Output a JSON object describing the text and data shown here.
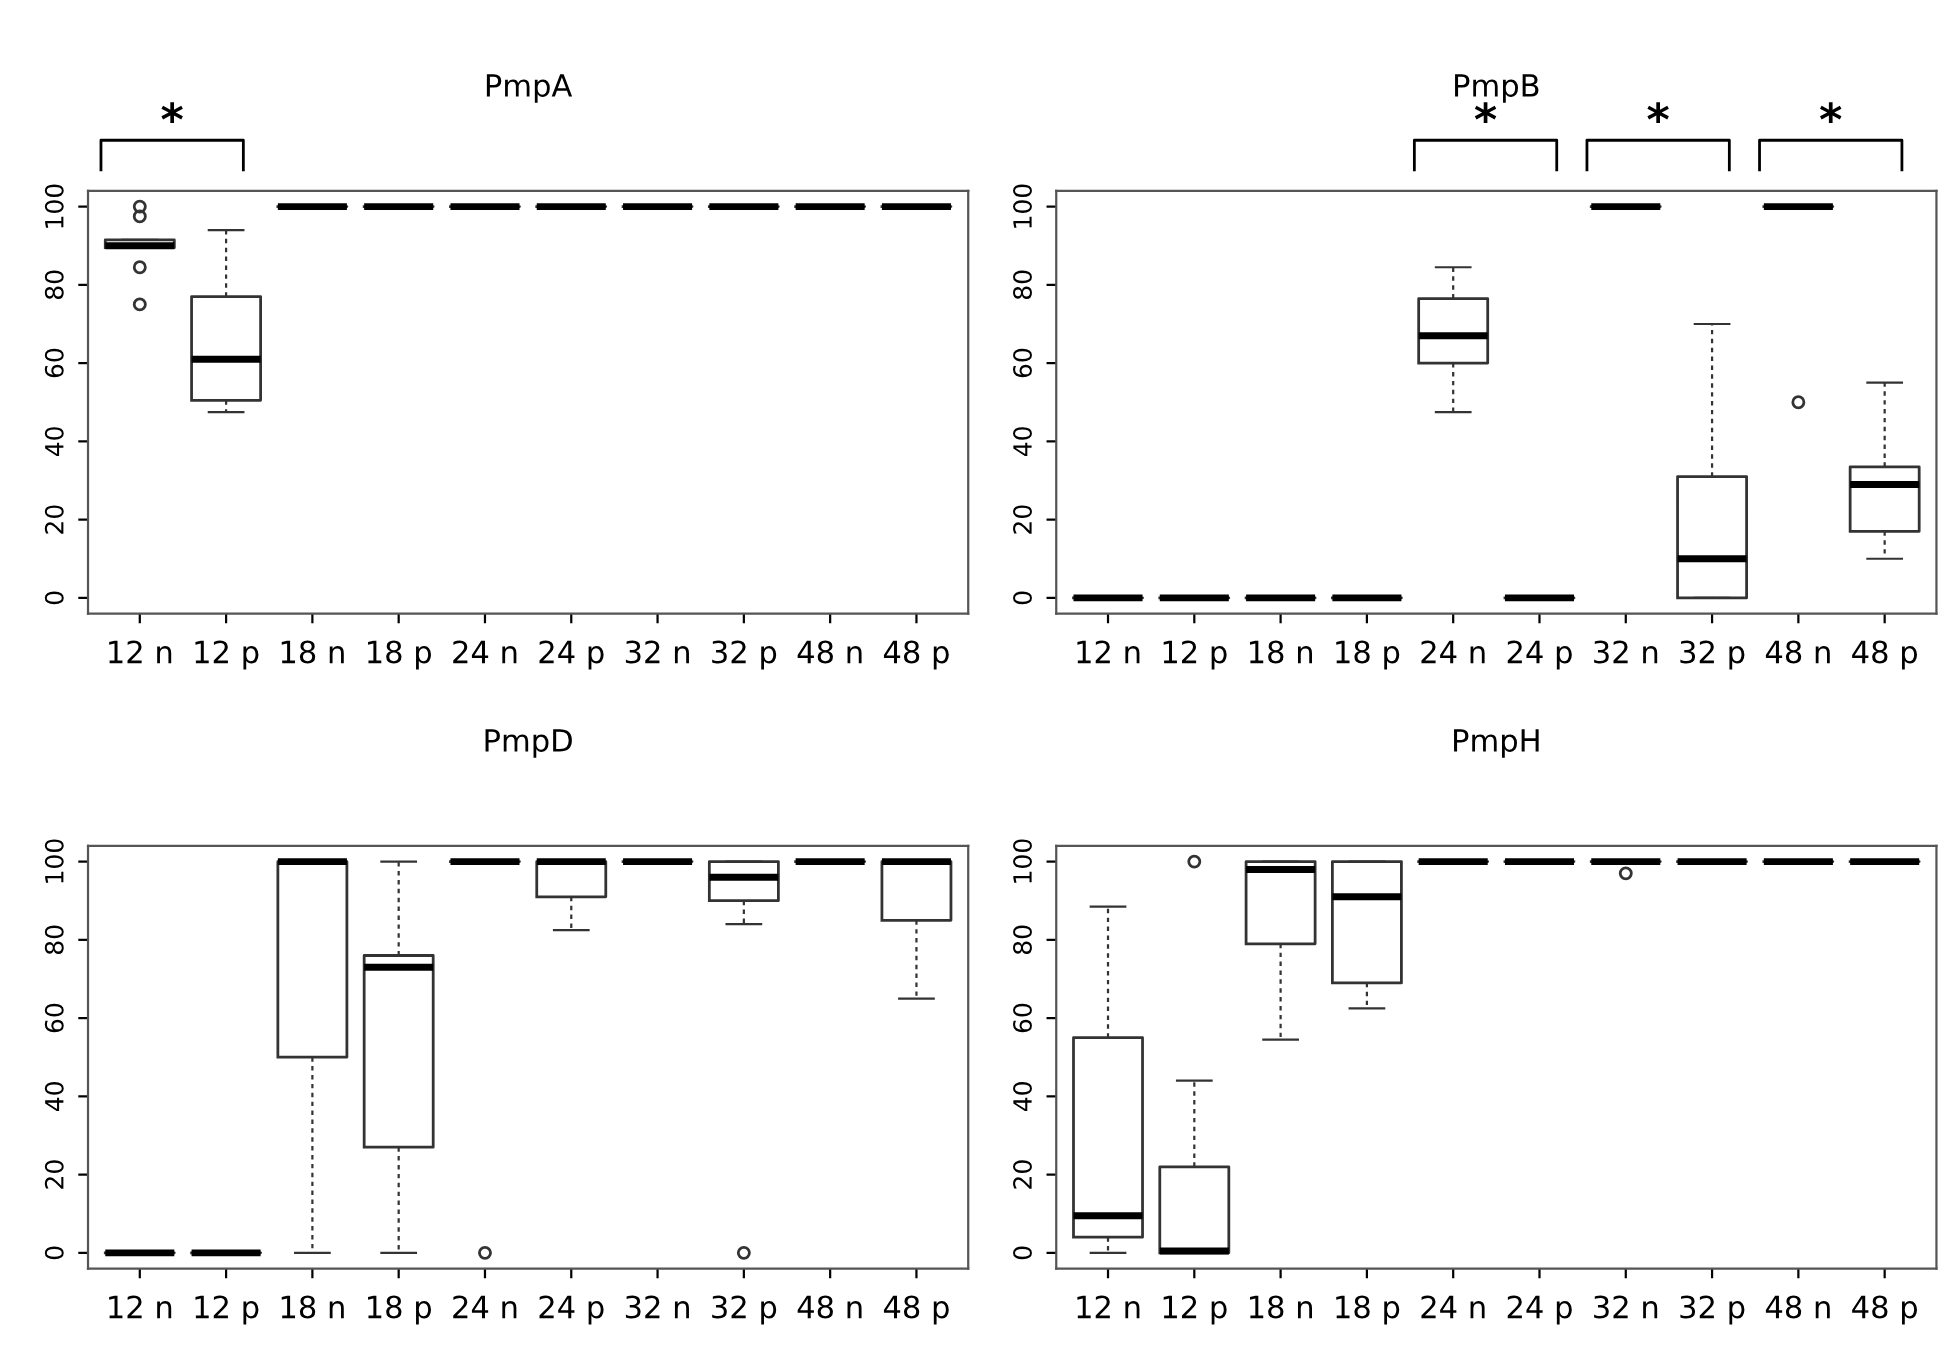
{
  "chart_data": [
    {
      "type": "box",
      "title": "PmpA",
      "categories": [
        "12 n",
        "12 p",
        "18 n",
        "18 p",
        "24 n",
        "24 p",
        "32 n",
        "32 p",
        "48 n",
        "48 p"
      ],
      "ylim": [
        -4,
        104
      ],
      "yticks": [
        0,
        20,
        40,
        60,
        80,
        100
      ],
      "annotations": [
        "*"
      ],
      "boxes": [
        {
          "low": 89.5,
          "q1": 89.5,
          "median": 90,
          "q3": 91.5,
          "high": 91.5,
          "outliers": [
            100,
            97.5,
            84.5,
            75
          ]
        },
        {
          "low": 47.5,
          "q1": 50.5,
          "median": 61,
          "q3": 77,
          "high": 94
        },
        {
          "low": 100,
          "q1": 100,
          "median": 100,
          "q3": 100,
          "high": 100
        },
        {
          "low": 100,
          "q1": 100,
          "median": 100,
          "q3": 100,
          "high": 100
        },
        {
          "low": 100,
          "q1": 100,
          "median": 100,
          "q3": 100,
          "high": 100
        },
        {
          "low": 100,
          "q1": 100,
          "median": 100,
          "q3": 100,
          "high": 100
        },
        {
          "low": 100,
          "q1": 100,
          "median": 100,
          "q3": 100,
          "high": 100
        },
        {
          "low": 100,
          "q1": 100,
          "median": 100,
          "q3": 100,
          "high": 100
        },
        {
          "low": 100,
          "q1": 100,
          "median": 100,
          "q3": 100,
          "high": 100
        },
        {
          "low": 100,
          "q1": 100,
          "median": 100,
          "q3": 100,
          "high": 100
        }
      ]
    },
    {
      "type": "box",
      "title": "PmpB",
      "categories": [
        "12 n",
        "12 p",
        "18 n",
        "18 p",
        "24 n",
        "24 p",
        "32 n",
        "32 p",
        "48 n",
        "48 p"
      ],
      "ylim": [
        -4,
        104
      ],
      "yticks": [
        0,
        20,
        40,
        60,
        80,
        100
      ],
      "annotations": [
        "*",
        "*",
        "*"
      ],
      "boxes": [
        {
          "low": 0,
          "q1": 0,
          "median": 0,
          "q3": 0,
          "high": 0
        },
        {
          "low": 0,
          "q1": 0,
          "median": 0,
          "q3": 0,
          "high": 0
        },
        {
          "low": 0,
          "q1": 0,
          "median": 0,
          "q3": 0,
          "high": 0
        },
        {
          "low": 0,
          "q1": 0,
          "median": 0,
          "q3": 0,
          "high": 0
        },
        {
          "low": 47.5,
          "q1": 60,
          "median": 67,
          "q3": 76.5,
          "high": 84.5
        },
        {
          "low": 0,
          "q1": 0,
          "median": 0,
          "q3": 0,
          "high": 0
        },
        {
          "low": 100,
          "q1": 100,
          "median": 100,
          "q3": 100,
          "high": 100
        },
        {
          "low": 0,
          "q1": 0,
          "median": 10,
          "q3": 31,
          "high": 70
        },
        {
          "low": 100,
          "q1": 100,
          "median": 100,
          "q3": 100,
          "high": 100,
          "outliers": [
            50
          ]
        },
        {
          "low": 10,
          "q1": 17,
          "median": 29,
          "q3": 33.5,
          "high": 55
        }
      ]
    },
    {
      "type": "box",
      "title": "PmpD",
      "categories": [
        "12 n",
        "12 p",
        "18 n",
        "18 p",
        "24 n",
        "24 p",
        "32 n",
        "32 p",
        "48 n",
        "48 p"
      ],
      "ylim": [
        -4,
        104
      ],
      "yticks": [
        0,
        20,
        40,
        60,
        80,
        100
      ],
      "boxes": [
        {
          "low": 0,
          "q1": 0,
          "median": 0,
          "q3": 0,
          "high": 0
        },
        {
          "low": 0,
          "q1": 0,
          "median": 0,
          "q3": 0,
          "high": 0
        },
        {
          "low": 0,
          "q1": 50,
          "median": 100,
          "q3": 100,
          "high": 100
        },
        {
          "low": 0,
          "q1": 27,
          "median": 73,
          "q3": 76,
          "high": 100
        },
        {
          "low": 100,
          "q1": 100,
          "median": 100,
          "q3": 100,
          "high": 100,
          "outliers": [
            0
          ]
        },
        {
          "low": 82.5,
          "q1": 91,
          "median": 100,
          "q3": 100,
          "high": 100
        },
        {
          "low": 100,
          "q1": 100,
          "median": 100,
          "q3": 100,
          "high": 100
        },
        {
          "low": 84,
          "q1": 90,
          "median": 96,
          "q3": 100,
          "high": 100,
          "outliers": [
            0
          ]
        },
        {
          "low": 100,
          "q1": 100,
          "median": 100,
          "q3": 100,
          "high": 100
        },
        {
          "low": 65,
          "q1": 85,
          "median": 100,
          "q3": 100,
          "high": 100
        }
      ]
    },
    {
      "type": "box",
      "title": "PmpH",
      "categories": [
        "12 n",
        "12 p",
        "18 n",
        "18 p",
        "24 n",
        "24 p",
        "32 n",
        "32 p",
        "48 n",
        "48 p"
      ],
      "ylim": [
        -4,
        104
      ],
      "yticks": [
        0,
        20,
        40,
        60,
        80,
        100
      ],
      "boxes": [
        {
          "low": 0,
          "q1": 4,
          "median": 9.5,
          "q3": 55,
          "high": 88.5
        },
        {
          "low": 0,
          "q1": 0,
          "median": 0.5,
          "q3": 22,
          "high": 44,
          "outliers": [
            100
          ]
        },
        {
          "low": 54.5,
          "q1": 79,
          "median": 98,
          "q3": 100,
          "high": 100
        },
        {
          "low": 62.5,
          "q1": 69,
          "median": 91,
          "q3": 100,
          "high": 100
        },
        {
          "low": 100,
          "q1": 100,
          "median": 100,
          "q3": 100,
          "high": 100
        },
        {
          "low": 100,
          "q1": 100,
          "median": 100,
          "q3": 100,
          "high": 100
        },
        {
          "low": 100,
          "q1": 100,
          "median": 100,
          "q3": 100,
          "high": 100,
          "outliers": [
            97
          ]
        },
        {
          "low": 100,
          "q1": 100,
          "median": 100,
          "q3": 100,
          "high": 100
        },
        {
          "low": 100,
          "q1": 100,
          "median": 100,
          "q3": 100,
          "high": 100
        },
        {
          "low": 100,
          "q1": 100,
          "median": 100,
          "q3": 100,
          "high": 100
        }
      ]
    }
  ]
}
